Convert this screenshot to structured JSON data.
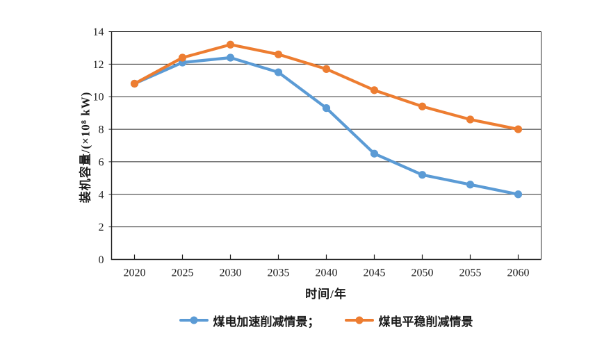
{
  "chart_data": {
    "type": "line",
    "title": "",
    "xlabel": "时间/年",
    "ylabel": "装机容量/(×10⁸ kW)",
    "x": [
      "2020",
      "2025",
      "2030",
      "2035",
      "2040",
      "2045",
      "2050",
      "2055",
      "2060"
    ],
    "series": [
      {
        "name": "煤电加速削减情景",
        "legend_label": "煤电加速削减情景；",
        "color": "#5B9BD5",
        "values": [
          10.8,
          12.1,
          12.4,
          11.5,
          9.3,
          6.5,
          5.2,
          4.6,
          4.0
        ]
      },
      {
        "name": "煤电平稳削减情景",
        "legend_label": "煤电平稳削减情景",
        "color": "#ED7D31",
        "values": [
          10.8,
          12.4,
          13.2,
          12.6,
          11.7,
          10.4,
          9.4,
          8.6,
          8.0
        ]
      }
    ],
    "ylim": [
      0,
      14
    ],
    "ytick_step": 2,
    "yticks": [
      0,
      2,
      4,
      6,
      8,
      10,
      12,
      14
    ],
    "grid": true,
    "legend_position": "bottom",
    "axis_color": "#1a1a1a",
    "grid_color": "#2b2b2b",
    "tick_label_color": "#1f1f1f"
  }
}
